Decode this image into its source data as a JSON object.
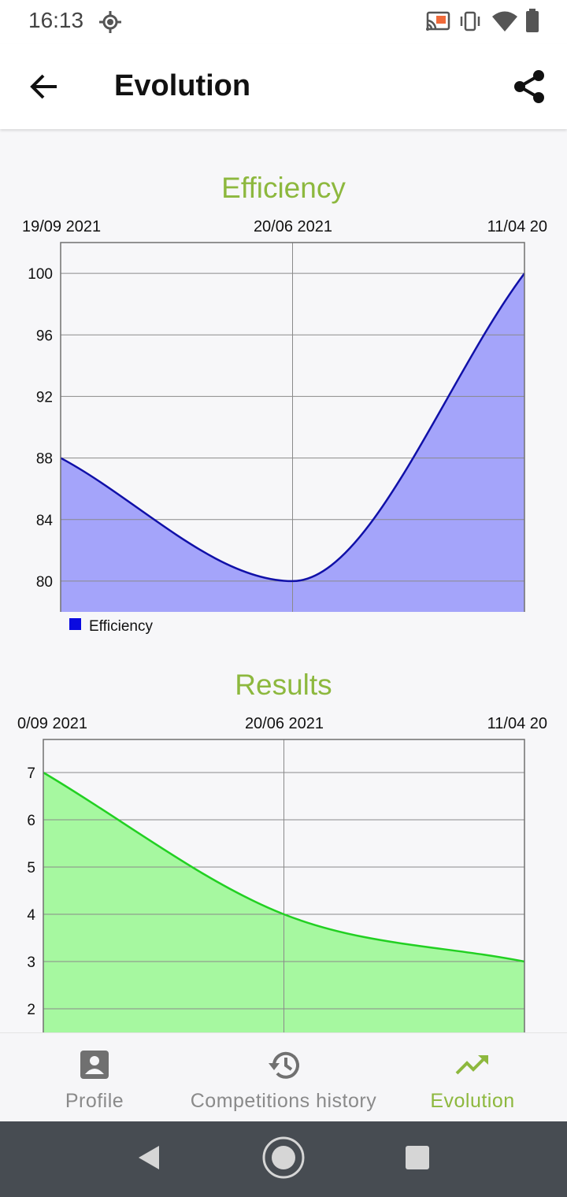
{
  "status_bar": {
    "time": "16:13",
    "icons": [
      "location-icon",
      "cast-icon",
      "vibrate-icon",
      "wifi-icon",
      "battery-icon"
    ]
  },
  "app_bar": {
    "title": "Evolution",
    "back_icon": "arrow-back-icon",
    "share_icon": "share-icon"
  },
  "colors": {
    "accent_green": "#8db83e",
    "efficiency_line": "#1010a8",
    "efficiency_fill": "#a4a4fa",
    "efficiency_legend": "#0a0ae0",
    "results_line": "#22d022",
    "results_fill": "#a6f8a0"
  },
  "chart_data": [
    {
      "type": "area",
      "title": "Efficiency",
      "x": [
        "19/09 2021",
        "20/06 2021",
        "11/04 20"
      ],
      "series": [
        {
          "name": "Efficiency",
          "values": [
            88,
            80,
            100
          ]
        }
      ],
      "ylim": [
        78,
        102
      ],
      "yticks": [
        80,
        84,
        88,
        92,
        96,
        100
      ],
      "grid": true,
      "legend": "bottom-left"
    },
    {
      "type": "area",
      "title": "Results",
      "x": [
        "0/09 2021",
        "20/06 2021",
        "11/04 20"
      ],
      "series": [
        {
          "values": [
            7,
            4,
            3
          ]
        }
      ],
      "ylim": [
        1.5,
        7.7
      ],
      "yticks": [
        2,
        3,
        4,
        5,
        6,
        7
      ],
      "grid": true
    }
  ],
  "bottom_nav": {
    "items": [
      {
        "label": "Profile",
        "icon": "person-icon",
        "active": false
      },
      {
        "label": "Competitions history",
        "icon": "history-icon",
        "active": false
      },
      {
        "label": "Evolution",
        "icon": "trending-up-icon",
        "active": true
      }
    ]
  },
  "system_nav": {
    "icons": [
      "back-triangle-icon",
      "home-circle-icon",
      "recents-square-icon"
    ]
  }
}
